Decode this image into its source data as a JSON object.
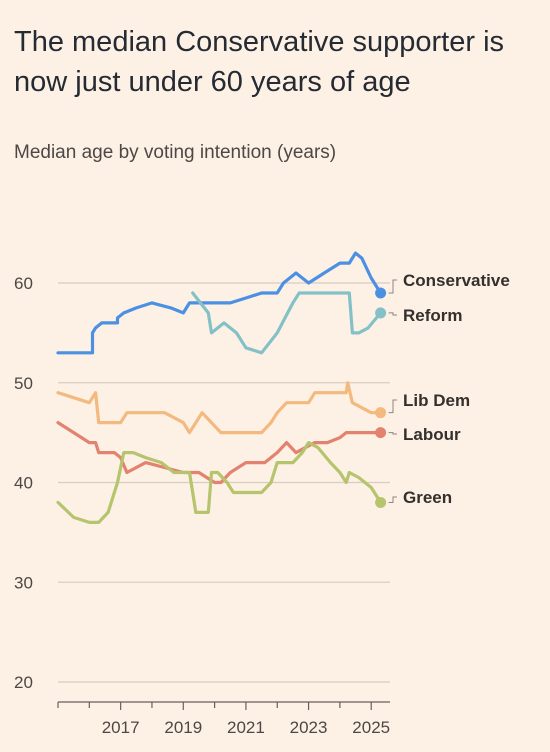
{
  "title": "The median Conservative supporter is now just under 60 years of age",
  "subtitle": "Median age by voting intention (years)",
  "chart_data": {
    "type": "line",
    "title": "The median Conservative supporter is now just under 60 years of age",
    "subtitle": "Median age by voting intention (years)",
    "xlabel": "",
    "ylabel": "",
    "xlim": [
      2015.0,
      2025.6
    ],
    "ylim": [
      18,
      66
    ],
    "yticks": [
      20,
      30,
      40,
      50,
      60
    ],
    "xticks": [
      2017,
      2019,
      2021,
      2023,
      2025
    ],
    "x_minor_ticks": [
      2016,
      2018,
      2020,
      2022,
      2024
    ],
    "grid": "horizontal",
    "legend": "direct labels at right",
    "series": [
      {
        "name": "Conservative",
        "color": "#4b90e2",
        "x": [
          2015.0,
          2016.1,
          2016.1,
          2016.2,
          2016.4,
          2016.9,
          2016.9,
          2017.1,
          2017.5,
          2018.0,
          2018.6,
          2019.0,
          2019.2,
          2019.5,
          2020.1,
          2020.5,
          2021.0,
          2021.5,
          2022.0,
          2022.2,
          2022.6,
          2023.0,
          2023.5,
          2024.0,
          2024.2,
          2024.3,
          2024.5,
          2024.7,
          2025.0,
          2025.3
        ],
        "y": [
          53,
          53,
          55,
          55.5,
          56,
          56,
          56.5,
          57,
          57.5,
          58,
          57.5,
          57,
          58,
          58,
          58,
          58,
          58.5,
          59,
          59,
          60,
          61,
          60,
          61,
          62,
          62,
          62,
          63,
          62.5,
          60.5,
          59
        ]
      },
      {
        "name": "Reform",
        "color": "#84c1c7",
        "x": [
          2019.3,
          2019.8,
          2019.9,
          2020.3,
          2020.7,
          2021.0,
          2021.5,
          2022.0,
          2022.5,
          2022.7,
          2023.0,
          2023.5,
          2024.0,
          2024.3,
          2024.4,
          2024.6,
          2024.9,
          2025.3
        ],
        "y": [
          59,
          57,
          55,
          56,
          55,
          53.5,
          53,
          55,
          58,
          59,
          59,
          59,
          59,
          59,
          55,
          55,
          55.5,
          57
        ]
      },
      {
        "name": "Lib Dem",
        "color": "#f3b97e",
        "x": [
          2015.0,
          2015.5,
          2016.0,
          2016.2,
          2016.3,
          2016.8,
          2017.0,
          2017.2,
          2017.8,
          2018.4,
          2019.0,
          2019.2,
          2019.6,
          2019.9,
          2020.2,
          2020.5,
          2021.0,
          2021.5,
          2021.8,
          2022.0,
          2022.3,
          2022.6,
          2023.0,
          2023.2,
          2023.6,
          2024.0,
          2024.2,
          2024.25,
          2024.4,
          2024.7,
          2025.0,
          2025.3
        ],
        "y": [
          49,
          48.5,
          48,
          49,
          46,
          46,
          46,
          47,
          47,
          47,
          46,
          45,
          47,
          46,
          45,
          45,
          45,
          45,
          46,
          47,
          48,
          48,
          48,
          49,
          49,
          49,
          49,
          50,
          48,
          47.5,
          47,
          47
        ]
      },
      {
        "name": "Labour",
        "color": "#e3826f",
        "x": [
          2015.0,
          2015.5,
          2016.0,
          2016.2,
          2016.3,
          2016.8,
          2017.0,
          2017.2,
          2017.8,
          2018.4,
          2019.0,
          2019.5,
          2020.0,
          2020.2,
          2020.5,
          2021.0,
          2021.6,
          2022.0,
          2022.3,
          2022.6,
          2022.9,
          2023.2,
          2023.6,
          2024.0,
          2024.2,
          2024.6,
          2025.0,
          2025.3
        ],
        "y": [
          46,
          45,
          44,
          44,
          43,
          43,
          42.5,
          41,
          42,
          41.5,
          41,
          41,
          40,
          40,
          41,
          42,
          42,
          43,
          44,
          43,
          43.5,
          44,
          44,
          44.5,
          45,
          45,
          45,
          45
        ]
      },
      {
        "name": "Green",
        "color": "#b5c46d",
        "x": [
          2015.0,
          2015.5,
          2016.0,
          2016.3,
          2016.6,
          2016.9,
          2017.1,
          2017.4,
          2017.8,
          2018.3,
          2018.7,
          2019.0,
          2019.2,
          2019.3,
          2019.4,
          2019.8,
          2019.9,
          2020.1,
          2020.4,
          2020.6,
          2021.0,
          2021.5,
          2021.8,
          2022.0,
          2022.5,
          2022.8,
          2023.0,
          2023.3,
          2023.7,
          2024.0,
          2024.2,
          2024.3,
          2024.6,
          2025.0,
          2025.3
        ],
        "y": [
          38,
          36.5,
          36,
          36,
          37,
          40,
          43,
          43,
          42.5,
          42,
          41,
          41,
          41,
          39,
          37,
          37,
          41,
          41,
          40,
          39,
          39,
          39,
          40,
          42,
          42,
          43,
          44,
          43.5,
          42,
          41,
          40,
          41,
          40.5,
          39.5,
          38
        ]
      }
    ],
    "label_order": [
      "Conservative",
      "Reform",
      "Lib Dem",
      "Labour",
      "Green"
    ]
  }
}
